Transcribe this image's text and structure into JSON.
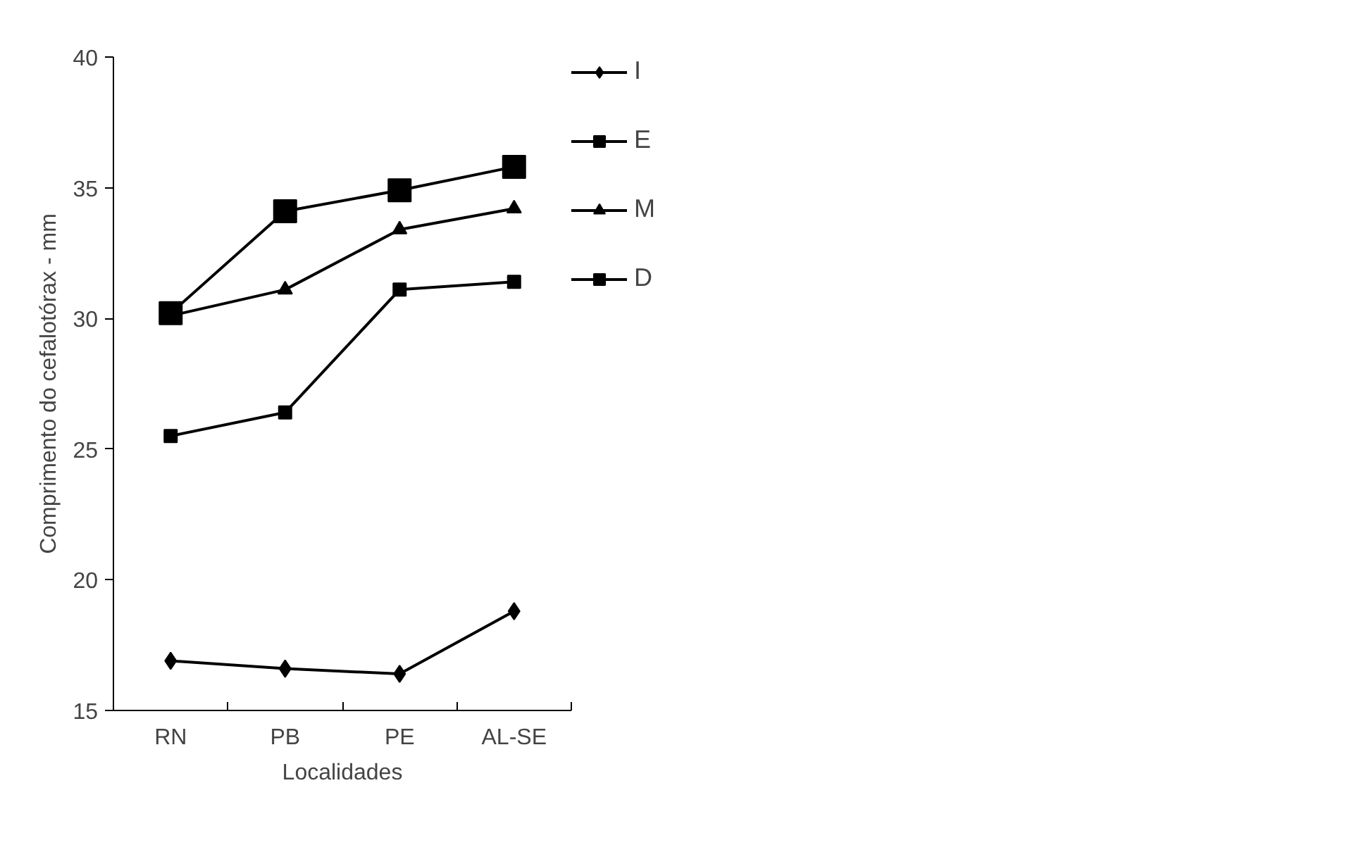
{
  "chart_data": {
    "type": "line",
    "xlabel": "Localidades",
    "ylabel": "Comprimento do cefalotórax - mm",
    "categories": [
      "RN",
      "PB",
      "PE",
      "AL-SE"
    ],
    "series": [
      {
        "name": "I",
        "color": "#000000",
        "marker": "diamond",
        "values": [
          16.9,
          16.6,
          16.4,
          18.8
        ]
      },
      {
        "name": "E",
        "color": "#000000",
        "marker": "square",
        "values": [
          25.5,
          26.4,
          31.1,
          31.4
        ]
      },
      {
        "name": "M",
        "color": "#000000",
        "marker": "triangle",
        "values": [
          30.1,
          31.1,
          33.4,
          34.2
        ]
      },
      {
        "name": "D",
        "color": "#000000",
        "marker": "square",
        "values": [
          30.2,
          34.1,
          34.9,
          35.8
        ]
      }
    ],
    "ylim": [
      15,
      40
    ],
    "yticks": [
      15,
      20,
      25,
      30,
      35,
      40
    ],
    "grid": false,
    "legend": "right",
    "line_style": "solid"
  }
}
